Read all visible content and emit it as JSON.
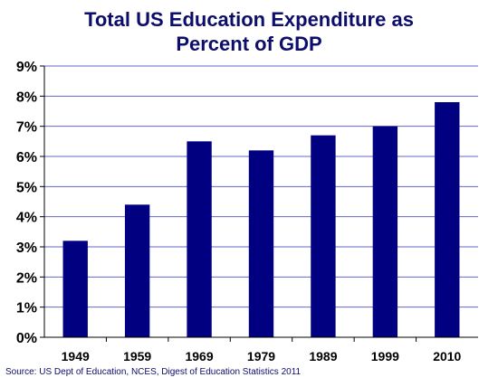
{
  "chart_data": {
    "type": "bar",
    "title_lines": [
      "Total US Education Expenditure as",
      "Percent of GDP"
    ],
    "categories": [
      "1949",
      "1959",
      "1969",
      "1979",
      "1989",
      "1999",
      "2010"
    ],
    "values": [
      3.2,
      4.4,
      6.5,
      6.2,
      6.7,
      7.0,
      7.8
    ],
    "y_ticks": [
      "0%",
      "1%",
      "2%",
      "3%",
      "4%",
      "5%",
      "6%",
      "7%",
      "8%",
      "9%"
    ],
    "ylim": [
      0,
      9
    ],
    "grid": true,
    "legend": "none",
    "bar_color": "#000080",
    "grid_color": "#6666cc"
  },
  "source": "Source: US Dept of Education, NCES, Digest of Education Statistics 2011"
}
